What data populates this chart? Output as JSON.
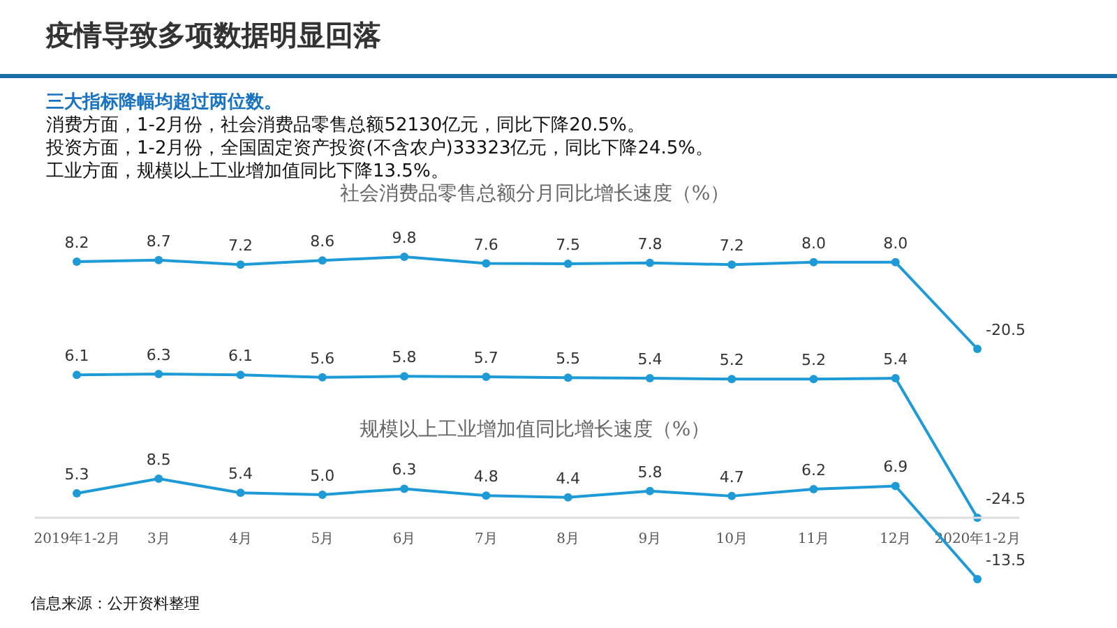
{
  "chart_data": [
    {
      "type": "other",
      "title": "疫情导致多项数据明显回落",
      "annotations": [
        "**三大指标降幅均超过两位数。**",
        "消费方面，1-2月份，社会消费品零售总额52130亿元，同比下降20.5%。",
        "投资方面，1-2月份，全国固定资产投资(不含农户)33323亿元，同比下降24.5%。",
        "工业方面，规模以上工业增加值同比下降13.5%。"
      ]
    },
    {
      "type": "line",
      "title": "社会消费品零售总额分月同比增长速度（%）",
      "categories": [
        null,
        null,
        null,
        null,
        null,
        null,
        null,
        null,
        null,
        null,
        null,
        null
      ],
      "series": [
        {
          "color": "#1e9ad6",
          "values": [
            8.2,
            8.7,
            7.2,
            8.6,
            9.8,
            7.6,
            7.5,
            7.8,
            7.2,
            8.0,
            8.0,
            -20.5
          ],
          "value_labels": [
            "8.2",
            "8.7",
            "7.2",
            "8.6",
            "9.8",
            "7.6",
            "7.5",
            "7.8",
            "7.2",
            "8.0",
            "8.0",
            "-20.5"
          ]
        }
      ],
      "marker": "circle"
    },
    {
      "type": "line",
      "categories": [
        null,
        null,
        null,
        null,
        null,
        null,
        null,
        null,
        null,
        null,
        null,
        null
      ],
      "series": [
        {
          "color": "#1e9ad6",
          "values": [
            6.1,
            6.3,
            6.1,
            5.6,
            5.8,
            5.7,
            5.5,
            5.4,
            5.2,
            5.2,
            5.4,
            -24.5
          ],
          "value_labels": [
            "6.1",
            "6.3",
            "6.1",
            "5.6",
            "5.8",
            "5.7",
            "5.5",
            "5.4",
            "5.2",
            "5.2",
            "5.4",
            "-24.5"
          ]
        }
      ],
      "marker": "circle"
    },
    {
      "type": "line",
      "title": "规模以上工业增加值同比增长速度（%）",
      "categories": [
        "2019年1-2月",
        "3月",
        "4月",
        "5月",
        "6月",
        "7月",
        "8月",
        "9月",
        "10月",
        "11月",
        "12月",
        "2020年1-2月"
      ],
      "series": [
        {
          "color": "#1e9ad6",
          "values": [
            5.3,
            8.5,
            5.4,
            5.0,
            6.3,
            4.8,
            4.4,
            5.8,
            4.7,
            6.2,
            6.9,
            -13.5
          ],
          "value_labels": [
            "5.3",
            "8.5",
            "5.4",
            "5.0",
            "6.3",
            "4.8",
            "4.4",
            "5.8",
            "4.7",
            "6.2",
            "6.9",
            "-13.5"
          ]
        }
      ],
      "marker": "circle",
      "annotations": [
        "信息来源：公开资料整理"
      ]
    }
  ]
}
